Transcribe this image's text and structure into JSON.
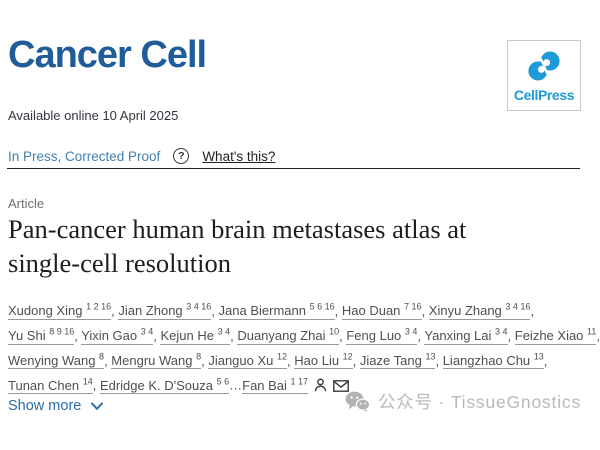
{
  "header": {
    "journal_logo": "Cancer Cell",
    "cellpress": {
      "label": "CellPress",
      "logo_icon": "cellpress-logo-icon"
    },
    "available_online": "Available online 10 April 2025"
  },
  "status": {
    "in_press_label": "In Press, Corrected Proof",
    "help_icon": "question-circle-icon",
    "help_glyph": "?",
    "whats_this_label": "What's this?"
  },
  "article": {
    "type_label": "Article",
    "title": "Pan-cancer human brain metastases atlas at single-cell resolution",
    "title_lines": [
      "Pan-cancer human brain metastases atlas at",
      "single-cell resolution"
    ],
    "authors": [
      {
        "name": "Xudong Xing",
        "sup": "1 2 16"
      },
      {
        "name": "Jian Zhong",
        "sup": "3 4 16"
      },
      {
        "name": "Jana Biermann",
        "sup": "5 6 16"
      },
      {
        "name": "Hao Duan",
        "sup": "7 16"
      },
      {
        "name": "Xinyu Zhang",
        "sup": "3 4 16"
      },
      {
        "name": "Yu Shi",
        "sup": "8 9 16"
      },
      {
        "name": "Yixin Gao",
        "sup": "3 4"
      },
      {
        "name": "Kejun He",
        "sup": "3 4"
      },
      {
        "name": "Duanyang Zhai",
        "sup": "10"
      },
      {
        "name": "Feng Luo",
        "sup": "3 4"
      },
      {
        "name": "Yanxing Lai",
        "sup": "3 4"
      },
      {
        "name": "Feizhe Xiao",
        "sup": "11"
      },
      {
        "name": "Wenying Wang",
        "sup": "8"
      },
      {
        "name": "Mengru Wang",
        "sup": "8"
      },
      {
        "name": "Jianguo Xu",
        "sup": "12"
      },
      {
        "name": "Hao Liu",
        "sup": "12"
      },
      {
        "name": "Jiaze Tang",
        "sup": "13"
      },
      {
        "name": "Liangzhao Chu",
        "sup": "13"
      },
      {
        "name": "Tunan Chen",
        "sup": "14"
      },
      {
        "name": "Edridge K. D'Souza",
        "sup": "5 6"
      },
      {
        "name": "Fan Bai",
        "sup": "1 17",
        "sep_before": "…"
      }
    ],
    "author_icons": [
      "person-icon",
      "envelope-icon"
    ],
    "show_more_label": "Show more"
  },
  "watermark": {
    "icon": "wechat-icon",
    "text": "公众号 · TissueGnostics"
  },
  "colors": {
    "journal_blue": "#1f5c99",
    "cellpress_blue": "#1e9ad6",
    "in_press_blue": "#4380ae",
    "show_more_blue": "#2d6ca5",
    "title_black": "#1e1e1e",
    "author_gray": "#4f4f4f",
    "watermark_gray": "#b9b9b9"
  }
}
